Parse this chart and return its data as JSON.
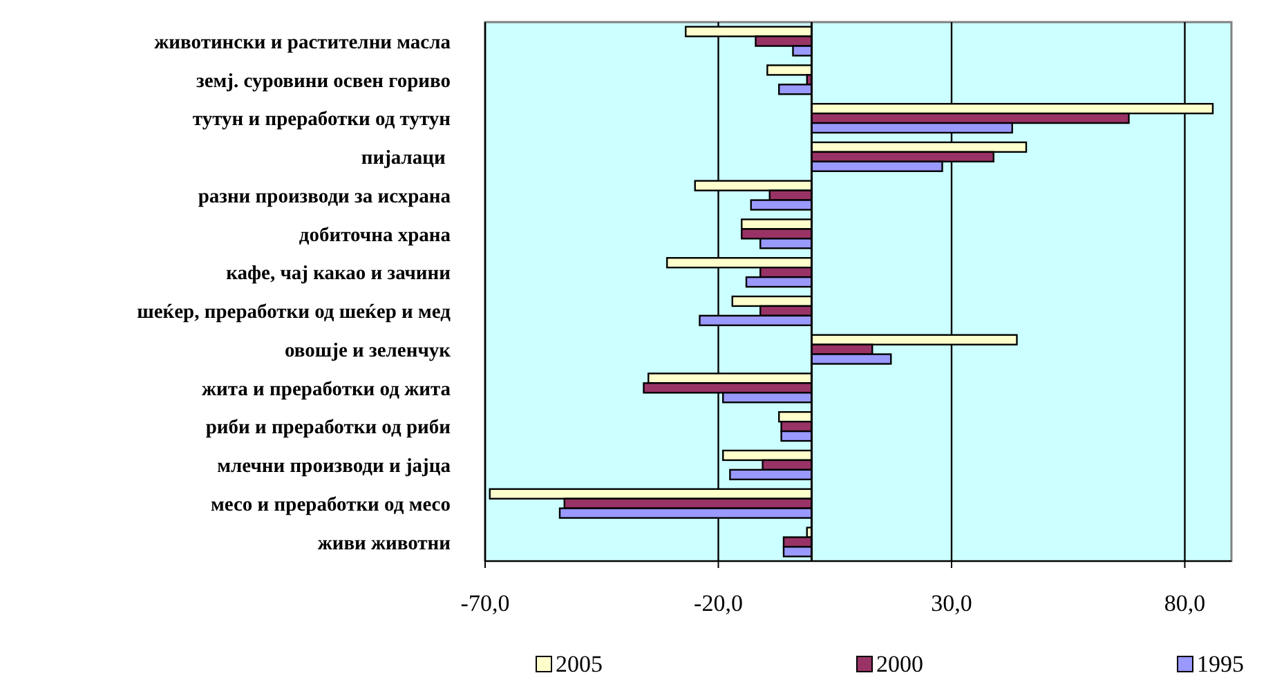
{
  "chart_data": {
    "type": "bar",
    "orientation": "horizontal",
    "categories": [
      "животински и растителни масла",
      "земј. суровини освен гориво",
      "тутун и преработки од тутун",
      "пијалаци ",
      "разни производи за исхрана",
      "добиточна храна",
      "кафе, чај какао и зачини",
      "шеќер, преработки од шеќер и мед",
      "овошје и зеленчук",
      "жита и преработки од жита",
      "риби и преработки од риби",
      "млечни производи и јајца",
      "месо и преработки од месо",
      "живи животни"
    ],
    "series": [
      {
        "name": "2005",
        "color": "#ffffcc",
        "values": [
          -27,
          -9.5,
          86,
          46,
          -25,
          -15,
          -31,
          -17,
          44,
          -35,
          -7,
          -19,
          -69,
          -1
        ]
      },
      {
        "name": "2000",
        "color": "#993366",
        "values": [
          -12,
          -1,
          68,
          39,
          -9,
          -15,
          -11,
          -11,
          13,
          -36,
          -6.5,
          -10.5,
          -53,
          -6
        ]
      },
      {
        "name": "1995",
        "color": "#9999ff",
        "values": [
          -4,
          -7,
          43,
          28,
          -13,
          -11,
          -14,
          -24,
          17,
          -19,
          -6.5,
          -17.5,
          -54,
          -6
        ]
      }
    ],
    "xlim": [
      -70,
      90
    ],
    "xticks": [
      {
        "value": -70,
        "label": "-70,0"
      },
      {
        "value": -20,
        "label": "-20,0"
      },
      {
        "value": 30,
        "label": "30,0"
      },
      {
        "value": 80,
        "label": "80,0"
      }
    ],
    "grid": "x",
    "legend": "bottom"
  }
}
